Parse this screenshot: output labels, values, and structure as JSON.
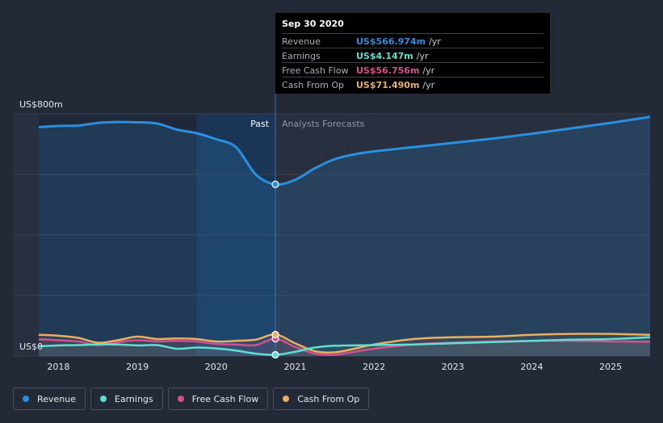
{
  "tooltip": {
    "date": "Sep 30 2020",
    "rows": [
      {
        "name": "Revenue",
        "value": "US$566.974m",
        "unit": "/yr",
        "color": "#2b8fe0"
      },
      {
        "name": "Earnings",
        "value": "US$4.147m",
        "unit": "/yr",
        "color": "#5ee0d0"
      },
      {
        "name": "Free Cash Flow",
        "value": "US$56.756m",
        "unit": "/yr",
        "color": "#d6508f"
      },
      {
        "name": "Cash From Op",
        "value": "US$71.490m",
        "unit": "/yr",
        "color": "#e8b060"
      }
    ]
  },
  "legend": [
    {
      "label": "Revenue",
      "color": "#2b8fe0"
    },
    {
      "label": "Earnings",
      "color": "#5ee0d0"
    },
    {
      "label": "Free Cash Flow",
      "color": "#d6508f"
    },
    {
      "label": "Cash From Op",
      "color": "#e8b060"
    }
  ],
  "regions": {
    "past": "Past",
    "forecast": "Analysts Forecasts"
  },
  "chart_data": {
    "type": "line",
    "y_top_label": "US$800m",
    "y_bottom_label": "US$0",
    "ylim": [
      0,
      800
    ],
    "xlim": [
      2017.75,
      2025.5
    ],
    "x_ticks": [
      "2018",
      "2019",
      "2020",
      "2021",
      "2022",
      "2023",
      "2024",
      "2025"
    ],
    "highlight_x": 2020.75,
    "grid": true,
    "series": [
      {
        "name": "Revenue",
        "color": "#2b8fe0",
        "points": [
          [
            2017.75,
            756
          ],
          [
            2018.0,
            760
          ],
          [
            2018.25,
            761
          ],
          [
            2018.5,
            770
          ],
          [
            2018.75,
            773
          ],
          [
            2019.0,
            772
          ],
          [
            2019.25,
            768
          ],
          [
            2019.5,
            748
          ],
          [
            2019.75,
            736
          ],
          [
            2020.0,
            716
          ],
          [
            2020.25,
            690
          ],
          [
            2020.5,
            600
          ],
          [
            2020.75,
            567
          ],
          [
            2021.0,
            582
          ],
          [
            2021.25,
            620
          ],
          [
            2021.5,
            650
          ],
          [
            2021.75,
            666
          ],
          [
            2022.0,
            676
          ],
          [
            2022.5,
            690
          ],
          [
            2023.0,
            704
          ],
          [
            2023.5,
            718
          ],
          [
            2024.0,
            734
          ],
          [
            2024.5,
            752
          ],
          [
            2025.0,
            770
          ],
          [
            2025.5,
            790
          ]
        ]
      },
      {
        "name": "Earnings",
        "color": "#5ee0d0",
        "points": [
          [
            2017.75,
            32
          ],
          [
            2018.0,
            35
          ],
          [
            2018.25,
            36
          ],
          [
            2018.5,
            38
          ],
          [
            2018.75,
            38
          ],
          [
            2019.0,
            35
          ],
          [
            2019.25,
            36
          ],
          [
            2019.5,
            24
          ],
          [
            2019.75,
            28
          ],
          [
            2020.0,
            25
          ],
          [
            2020.25,
            18
          ],
          [
            2020.5,
            8
          ],
          [
            2020.75,
            4
          ],
          [
            2021.0,
            14
          ],
          [
            2021.25,
            28
          ],
          [
            2021.5,
            34
          ],
          [
            2022.0,
            36
          ],
          [
            2022.5,
            38
          ],
          [
            2023.0,
            42
          ],
          [
            2023.5,
            46
          ],
          [
            2024.0,
            50
          ],
          [
            2024.5,
            54
          ],
          [
            2025.0,
            56
          ],
          [
            2025.5,
            62
          ]
        ]
      },
      {
        "name": "Free Cash Flow",
        "color": "#d6508f",
        "points": [
          [
            2017.75,
            55
          ],
          [
            2018.0,
            52
          ],
          [
            2018.25,
            48
          ],
          [
            2018.5,
            36
          ],
          [
            2018.75,
            45
          ],
          [
            2019.0,
            52
          ],
          [
            2019.25,
            48
          ],
          [
            2019.5,
            50
          ],
          [
            2019.75,
            48
          ],
          [
            2020.0,
            40
          ],
          [
            2020.25,
            38
          ],
          [
            2020.5,
            36
          ],
          [
            2020.75,
            57
          ],
          [
            2021.0,
            30
          ],
          [
            2021.25,
            8
          ],
          [
            2021.5,
            4
          ],
          [
            2021.75,
            14
          ],
          [
            2022.0,
            24
          ],
          [
            2022.5,
            38
          ],
          [
            2023.0,
            44
          ],
          [
            2023.5,
            48
          ],
          [
            2024.0,
            50
          ],
          [
            2024.5,
            50
          ],
          [
            2025.0,
            48
          ],
          [
            2025.5,
            47
          ]
        ]
      },
      {
        "name": "Cash From Op",
        "color": "#e8b060",
        "points": [
          [
            2017.75,
            70
          ],
          [
            2018.0,
            67
          ],
          [
            2018.25,
            60
          ],
          [
            2018.5,
            44
          ],
          [
            2018.75,
            52
          ],
          [
            2019.0,
            64
          ],
          [
            2019.25,
            56
          ],
          [
            2019.5,
            58
          ],
          [
            2019.75,
            56
          ],
          [
            2020.0,
            48
          ],
          [
            2020.25,
            50
          ],
          [
            2020.5,
            54
          ],
          [
            2020.75,
            71
          ],
          [
            2021.0,
            42
          ],
          [
            2021.25,
            16
          ],
          [
            2021.5,
            12
          ],
          [
            2021.75,
            24
          ],
          [
            2022.0,
            38
          ],
          [
            2022.5,
            56
          ],
          [
            2023.0,
            62
          ],
          [
            2023.5,
            64
          ],
          [
            2024.0,
            70
          ],
          [
            2024.5,
            73
          ],
          [
            2025.0,
            73
          ],
          [
            2025.5,
            70
          ]
        ]
      }
    ]
  }
}
